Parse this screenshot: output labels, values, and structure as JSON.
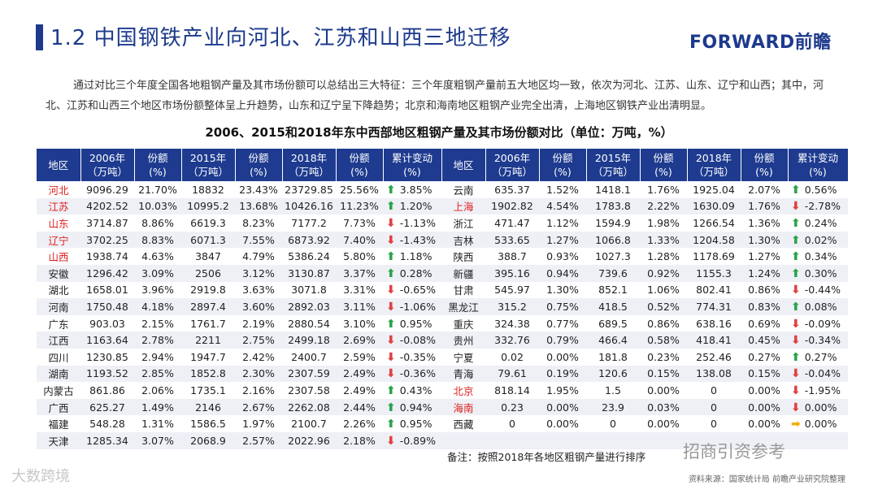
{
  "title": "1.2 中国钢铁产业向河北、江苏和山西三地迁移",
  "logo": "FORWARD前瞻",
  "intro": "通过对比三个年度全国各地粗钢产量及其市场份额可以总结出三大特征：三个年度粗钢产量前五大地区均一致，依次为河北、江苏、山东、辽宁和山西；其中，河北、江苏和山西三个地区市场份额整体呈上升趋势，山东和辽宁呈下降趋势；北京和海南地区粗钢产业完全出清，上海地区钢铁产业出清明显。",
  "table_title": "2006、2015和2018年东中西部地区粗钢产量及其市场份额对比（单位：万吨，%）",
  "headers": [
    "地区",
    "2006年\n（万吨）",
    "份额\n(%)",
    "2015年\n（万吨）",
    "份额\n(%)",
    "2018年\n（万吨）",
    "份额\n(%)",
    "累计变动\n(%)"
  ],
  "left_rows": [
    {
      "region": "河北",
      "v2006": "9096.29",
      "s2006": "21.70%",
      "v2015": "18832",
      "s2015": "23.43%",
      "v2018": "23729.85",
      "s2018": "25.56%",
      "dir": "up",
      "chg": "3.85%",
      "hl": true
    },
    {
      "region": "江苏",
      "v2006": "4202.52",
      "s2006": "10.03%",
      "v2015": "10995.2",
      "s2015": "13.68%",
      "v2018": "10426.16",
      "s2018": "11.23%",
      "dir": "up",
      "chg": "1.20%",
      "hl": true
    },
    {
      "region": "山东",
      "v2006": "3714.87",
      "s2006": "8.86%",
      "v2015": "6619.3",
      "s2015": "8.23%",
      "v2018": "7177.2",
      "s2018": "7.73%",
      "dir": "down",
      "chg": "-1.13%",
      "hl": true
    },
    {
      "region": "辽宁",
      "v2006": "3702.25",
      "s2006": "8.83%",
      "v2015": "6071.3",
      "s2015": "7.55%",
      "v2018": "6873.92",
      "s2018": "7.40%",
      "dir": "down",
      "chg": "-1.43%",
      "hl": true
    },
    {
      "region": "山西",
      "v2006": "1938.74",
      "s2006": "4.63%",
      "v2015": "3847",
      "s2015": "4.79%",
      "v2018": "5386.24",
      "s2018": "5.80%",
      "dir": "up",
      "chg": "1.18%",
      "hl": true
    },
    {
      "region": "安徽",
      "v2006": "1296.42",
      "s2006": "3.09%",
      "v2015": "2506",
      "s2015": "3.12%",
      "v2018": "3130.87",
      "s2018": "3.37%",
      "dir": "up",
      "chg": "0.28%",
      "hl": false
    },
    {
      "region": "湖北",
      "v2006": "1658.01",
      "s2006": "3.96%",
      "v2015": "2919.8",
      "s2015": "3.63%",
      "v2018": "3071.8",
      "s2018": "3.31%",
      "dir": "down",
      "chg": "-0.65%",
      "hl": false
    },
    {
      "region": "河南",
      "v2006": "1750.48",
      "s2006": "4.18%",
      "v2015": "2897.4",
      "s2015": "3.60%",
      "v2018": "2892.03",
      "s2018": "3.11%",
      "dir": "down",
      "chg": "-1.06%",
      "hl": false
    },
    {
      "region": "广东",
      "v2006": "903.03",
      "s2006": "2.15%",
      "v2015": "1761.7",
      "s2015": "2.19%",
      "v2018": "2880.54",
      "s2018": "3.10%",
      "dir": "up",
      "chg": "0.95%",
      "hl": false
    },
    {
      "region": "江西",
      "v2006": "1163.64",
      "s2006": "2.78%",
      "v2015": "2211",
      "s2015": "2.75%",
      "v2018": "2499.18",
      "s2018": "2.69%",
      "dir": "down",
      "chg": "-0.08%",
      "hl": false
    },
    {
      "region": "四川",
      "v2006": "1230.85",
      "s2006": "2.94%",
      "v2015": "1947.7",
      "s2015": "2.42%",
      "v2018": "2400.7",
      "s2018": "2.59%",
      "dir": "down",
      "chg": "-0.35%",
      "hl": false
    },
    {
      "region": "湖南",
      "v2006": "1193.52",
      "s2006": "2.85%",
      "v2015": "1852.8",
      "s2015": "2.30%",
      "v2018": "2307.59",
      "s2018": "2.49%",
      "dir": "down",
      "chg": "-0.36%",
      "hl": false
    },
    {
      "region": "内蒙古",
      "v2006": "861.86",
      "s2006": "2.06%",
      "v2015": "1735.1",
      "s2015": "2.16%",
      "v2018": "2307.58",
      "s2018": "2.49%",
      "dir": "up",
      "chg": "0.43%",
      "hl": false
    },
    {
      "region": "广西",
      "v2006": "625.27",
      "s2006": "1.49%",
      "v2015": "2146",
      "s2015": "2.67%",
      "v2018": "2262.08",
      "s2018": "2.44%",
      "dir": "up",
      "chg": "0.94%",
      "hl": false
    },
    {
      "region": "福建",
      "v2006": "548.28",
      "s2006": "1.31%",
      "v2015": "1586.5",
      "s2015": "1.97%",
      "v2018": "2100.7",
      "s2018": "2.26%",
      "dir": "up",
      "chg": "0.95%",
      "hl": false
    },
    {
      "region": "天津",
      "v2006": "1285.34",
      "s2006": "3.07%",
      "v2015": "2068.9",
      "s2015": "2.57%",
      "v2018": "2022.96",
      "s2018": "2.18%",
      "dir": "down",
      "chg": "-0.89%",
      "hl": false
    }
  ],
  "right_rows": [
    {
      "region": "云南",
      "v2006": "635.37",
      "s2006": "1.52%",
      "v2015": "1418.1",
      "s2015": "1.76%",
      "v2018": "1925.04",
      "s2018": "2.07%",
      "dir": "up",
      "chg": "0.56%",
      "hl": false
    },
    {
      "region": "上海",
      "v2006": "1902.82",
      "s2006": "4.54%",
      "v2015": "1783.8",
      "s2015": "2.22%",
      "v2018": "1630.09",
      "s2018": "1.76%",
      "dir": "down",
      "chg": "-2.78%",
      "hl": true
    },
    {
      "region": "浙江",
      "v2006": "471.47",
      "s2006": "1.12%",
      "v2015": "1594.9",
      "s2015": "1.98%",
      "v2018": "1266.54",
      "s2018": "1.36%",
      "dir": "up",
      "chg": "0.24%",
      "hl": false
    },
    {
      "region": "吉林",
      "v2006": "533.65",
      "s2006": "1.27%",
      "v2015": "1066.8",
      "s2015": "1.33%",
      "v2018": "1204.58",
      "s2018": "1.30%",
      "dir": "up",
      "chg": "0.02%",
      "hl": false
    },
    {
      "region": "陕西",
      "v2006": "388.7",
      "s2006": "0.93%",
      "v2015": "1027.3",
      "s2015": "1.28%",
      "v2018": "1178.69",
      "s2018": "1.27%",
      "dir": "up",
      "chg": "0.34%",
      "hl": false
    },
    {
      "region": "新疆",
      "v2006": "395.16",
      "s2006": "0.94%",
      "v2015": "739.6",
      "s2015": "0.92%",
      "v2018": "1155.3",
      "s2018": "1.24%",
      "dir": "up",
      "chg": "0.30%",
      "hl": false
    },
    {
      "region": "甘肃",
      "v2006": "545.97",
      "s2006": "1.30%",
      "v2015": "852.1",
      "s2015": "1.06%",
      "v2018": "802.41",
      "s2018": "0.86%",
      "dir": "down",
      "chg": "-0.44%",
      "hl": false
    },
    {
      "region": "黑龙江",
      "v2006": "315.2",
      "s2006": "0.75%",
      "v2015": "418.5",
      "s2015": "0.52%",
      "v2018": "774.31",
      "s2018": "0.83%",
      "dir": "up",
      "chg": "0.08%",
      "hl": false
    },
    {
      "region": "重庆",
      "v2006": "324.38",
      "s2006": "0.77%",
      "v2015": "689.5",
      "s2015": "0.86%",
      "v2018": "638.16",
      "s2018": "0.69%",
      "dir": "down",
      "chg": "-0.09%",
      "hl": false
    },
    {
      "region": "贵州",
      "v2006": "332.76",
      "s2006": "0.79%",
      "v2015": "466.4",
      "s2015": "0.58%",
      "v2018": "418.41",
      "s2018": "0.45%",
      "dir": "down",
      "chg": "-0.34%",
      "hl": false
    },
    {
      "region": "宁夏",
      "v2006": "0.02",
      "s2006": "0.00%",
      "v2015": "181.8",
      "s2015": "0.23%",
      "v2018": "252.46",
      "s2018": "0.27%",
      "dir": "up",
      "chg": "0.27%",
      "hl": false
    },
    {
      "region": "青海",
      "v2006": "79.61",
      "s2006": "0.19%",
      "v2015": "120.6",
      "s2015": "0.15%",
      "v2018": "138.08",
      "s2018": "0.15%",
      "dir": "down",
      "chg": "-0.04%",
      "hl": false
    },
    {
      "region": "北京",
      "v2006": "818.14",
      "s2006": "1.95%",
      "v2015": "1.5",
      "s2015": "0.00%",
      "v2018": "0",
      "s2018": "0.00%",
      "dir": "down",
      "chg": "-1.95%",
      "hl": true
    },
    {
      "region": "海南",
      "v2006": "0.23",
      "s2006": "0.00%",
      "v2015": "23.9",
      "s2015": "0.03%",
      "v2018": "0",
      "s2018": "0.00%",
      "dir": "down",
      "chg": "0.00%",
      "hl": true
    },
    {
      "region": "西藏",
      "v2006": "0",
      "s2006": "0.00%",
      "v2015": "0",
      "s2015": "0.00%",
      "v2018": "0",
      "s2018": "0.00%",
      "dir": "right",
      "chg": "0.00%",
      "hl": false
    }
  ],
  "note": "备注：按照2018年各地区粗钢产量进行排序",
  "source": "资料来源：国家统计局 前瞻产业研究院整理",
  "watermark_left": "大数跨境",
  "watermark_right": "招商引资参考",
  "colors": {
    "header_bg": "#1e3b8f",
    "highlight": "#e02020",
    "up": "#29a348",
    "down": "#e04040",
    "flat": "#f0b000"
  }
}
